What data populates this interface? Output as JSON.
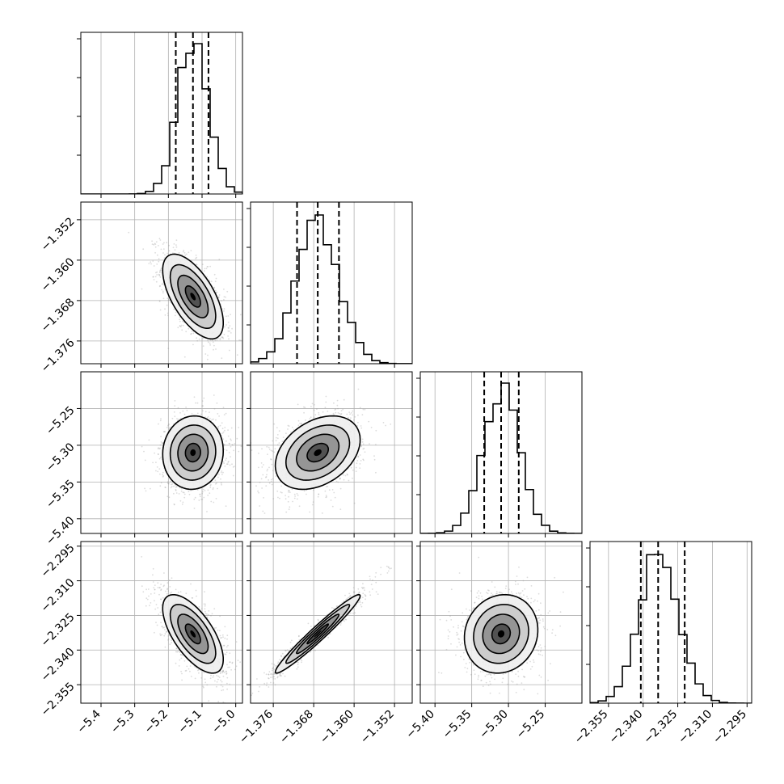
{
  "chart_data": {
    "type": "corner",
    "parameters": [
      {
        "key": "p1",
        "range": [
          -5.46,
          -4.98
        ],
        "ticks": [
          -5.4,
          -5.3,
          -5.2,
          -5.1,
          -5.0
        ],
        "tick_labels": [
          "−5.4",
          "−5.3",
          "−5.2",
          "−5.1",
          "−5.0"
        ],
        "quantiles": [
          -5.178,
          -5.127,
          -5.081
        ],
        "mean": -5.127,
        "sd": 0.045,
        "hist_peak_fraction": 0.93
      },
      {
        "key": "p2",
        "range": [
          -1.3805,
          -1.3485
        ],
        "ticks": [
          -1.376,
          -1.368,
          -1.36,
          -1.352
        ],
        "tick_labels": [
          "−1.376",
          "−1.368",
          "−1.360",
          "−1.352"
        ],
        "quantiles": [
          -1.3713,
          -1.3672,
          -1.363
        ],
        "mean": -1.3672,
        "sd": 0.0042,
        "hist_peak_fraction": 0.92
      },
      {
        "key": "p3",
        "range": [
          -5.42,
          -5.2
        ],
        "ticks": [
          -5.4,
          -5.35,
          -5.3,
          -5.25
        ],
        "tick_labels": [
          "−5.40",
          "−5.35",
          "−5.30",
          "−5.25"
        ],
        "quantiles": [
          -5.333,
          -5.31,
          -5.286
        ],
        "mean": -5.31,
        "sd": 0.025,
        "hist_peak_fraction": 0.93
      },
      {
        "key": "p4",
        "range": [
          -2.363,
          -2.293
        ],
        "ticks": [
          -2.355,
          -2.34,
          -2.325,
          -2.31,
          -2.295
        ],
        "tick_labels": [
          "−2.355",
          "−2.340",
          "−2.325",
          "−2.310",
          "−2.295"
        ],
        "quantiles": [
          -2.341,
          -2.3335,
          -2.322
        ],
        "mean": -2.333,
        "sd": 0.0085,
        "hist_peak_fraction": 0.92
      }
    ],
    "correlations": [
      {
        "pair": [
          "p1",
          "p2"
        ],
        "rho": -0.62
      },
      {
        "pair": [
          "p1",
          "p3"
        ],
        "rho": 0.05
      },
      {
        "pair": [
          "p2",
          "p3"
        ],
        "rho": 0.35
      },
      {
        "pair": [
          "p1",
          "p4"
        ],
        "rho": -0.65
      },
      {
        "pair": [
          "p2",
          "p4"
        ],
        "rho": 0.97
      },
      {
        "pair": [
          "p3",
          "p4"
        ],
        "rho": 0.1
      }
    ],
    "contour_sigma_levels": [
      0.5,
      1.0,
      1.5,
      2.0
    ],
    "hist_bins": 20,
    "grid": true,
    "title": "",
    "xlabel": "",
    "ylabel": ""
  },
  "colors": {
    "background": "#ffffff",
    "axis": "#000000",
    "grid": "#b0b0b0",
    "points": "#9a9a9a",
    "density_dark": "#000000",
    "density_light": "#f2f2f2",
    "contour": "#000000",
    "quantile_line": "#000000"
  }
}
